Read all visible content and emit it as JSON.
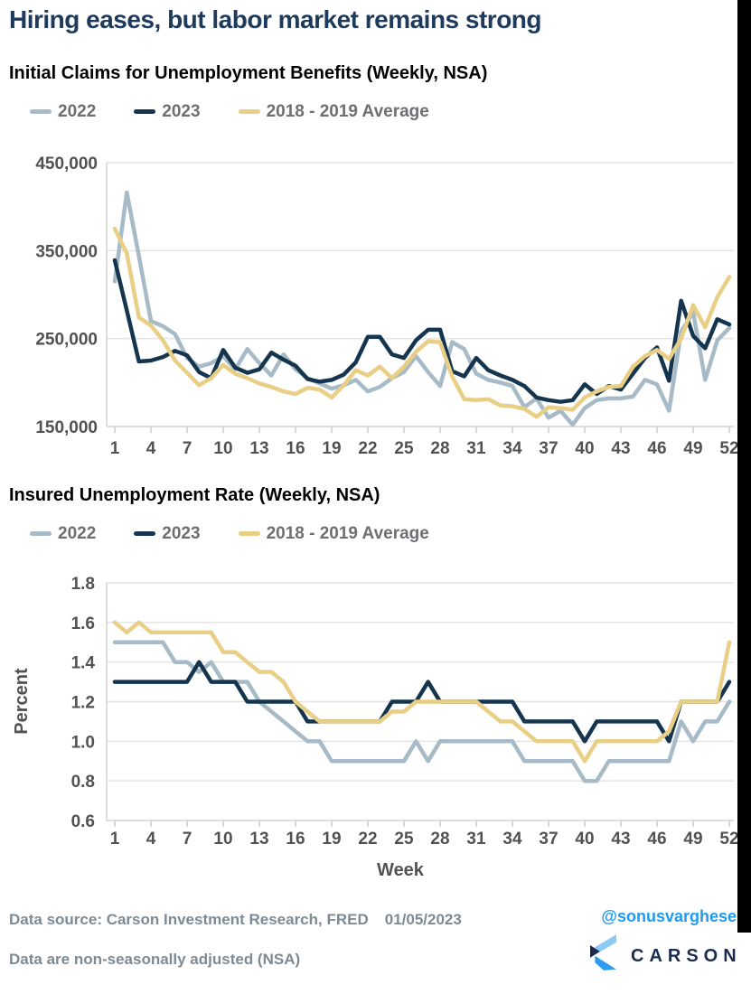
{
  "page": {
    "title": "Hiring eases, but labor market remains strong"
  },
  "colors": {
    "title": "#1E3A5C",
    "subtitle": "#000000",
    "legend_text": "#6E6F72",
    "axis_text": "#515254",
    "grid": "#E4E4E4",
    "axis_line": "#D2D2D2",
    "tick": "#C6CCD2",
    "footer_text": "#7D8A94",
    "handle_blue": "#1E9BF0",
    "brand_navy": "#1B2D4E",
    "strip_black": "#000000"
  },
  "charts": [
    {
      "subtitle": "Initial Claims for Unemployment Benefits (Weekly, NSA)",
      "chart_data": {
        "type": "line",
        "title": "Initial Claims for Unemployment Benefits (Weekly, NSA)",
        "xlabel": "",
        "ylabel": "",
        "x_unit": "week",
        "x_ticks": [
          1,
          4,
          7,
          10,
          13,
          16,
          19,
          22,
          25,
          28,
          31,
          34,
          37,
          40,
          43,
          46,
          49,
          52
        ],
        "ylim": [
          150000,
          450000
        ],
        "ytick_values": [
          450000,
          350000,
          250000,
          150000
        ],
        "ytick_labels": [
          "450,000",
          "350,000",
          "250,000",
          "150,000"
        ],
        "grid": "horizontal",
        "legend_position": "top",
        "series": [
          {
            "name": "2022",
            "color": "#A6BAC7",
            "values": [
              315000,
              416000,
              344000,
              270000,
              264000,
              255000,
              228000,
              218000,
              222000,
              230000,
              215000,
              238000,
              222000,
              208000,
              232000,
              215000,
              205000,
              199000,
              193000,
              197000,
              203000,
              190000,
              195000,
              205000,
              212000,
              230000,
              212000,
              196000,
              246000,
              238000,
              210000,
              203000,
              200000,
              196000,
              172000,
              182000,
              160000,
              168000,
              152000,
              171000,
              180000,
              182000,
              182000,
              184000,
              203000,
              198000,
              168000,
              258000,
              280000,
              203000,
              248000,
              262000
            ]
          },
          {
            "name": "2023",
            "color": "#15354F",
            "values": [
              339000,
              282000,
              224000,
              225000,
              229000,
              236000,
              231000,
              212000,
              205000,
              237000,
              217000,
              211000,
              215000,
              234000,
              226000,
              219000,
              204000,
              201000,
              203000,
              209000,
              223000,
              252000,
              252000,
              232000,
              228000,
              248000,
              260000,
              260000,
              213000,
              207000,
              228000,
              214000,
              208000,
              203000,
              196000,
              183000,
              180000,
              178000,
              180000,
              198000,
              187000,
              196000,
              192000,
              210000,
              228000,
              240000,
              202000,
              293000,
              253000,
              239000,
              272000,
              266000
            ]
          },
          {
            "name": "2018 - 2019 Average",
            "color": "#E9CF86",
            "values": [
              375000,
              347000,
              274000,
              265000,
              248000,
              225000,
              211000,
              197000,
              205000,
              220000,
              210000,
              205000,
              199000,
              195000,
              190000,
              187000,
              194000,
              192000,
              183000,
              197000,
              214000,
              208000,
              218000,
              205000,
              218000,
              235000,
              247000,
              246000,
              207000,
              181000,
              180000,
              181000,
              174000,
              173000,
              170000,
              161000,
              172000,
              171000,
              169000,
              183000,
              190000,
              195000,
              196000,
              218000,
              230000,
              237000,
              227000,
              250000,
              288000,
              263000,
              297000,
              320000
            ]
          }
        ]
      }
    },
    {
      "subtitle": "Insured Unemployment Rate (Weekly, NSA)",
      "chart_data": {
        "type": "line",
        "title": "Insured Unemployment Rate (Weekly, NSA)",
        "xlabel": "Week",
        "ylabel": "Percent",
        "x_unit": "week",
        "x_ticks": [
          1,
          4,
          7,
          10,
          13,
          16,
          19,
          22,
          25,
          28,
          31,
          34,
          37,
          40,
          43,
          46,
          49,
          52
        ],
        "ylim": [
          0.6,
          1.8
        ],
        "ytick_values": [
          1.8,
          1.6,
          1.4,
          1.2,
          1.0,
          0.8,
          0.6
        ],
        "ytick_labels": [
          "1.8",
          "1.6",
          "1.4",
          "1.2",
          "1.0",
          "0.8",
          "0.6"
        ],
        "grid": "horizontal",
        "legend_position": "top",
        "series": [
          {
            "name": "2022",
            "color": "#A6BAC7",
            "values": [
              1.5,
              1.5,
              1.5,
              1.5,
              1.5,
              1.4,
              1.4,
              1.35,
              1.4,
              1.3,
              1.3,
              1.3,
              1.2,
              1.15,
              1.1,
              1.05,
              1.0,
              1.0,
              0.9,
              0.9,
              0.9,
              0.9,
              0.9,
              0.9,
              0.9,
              1.0,
              0.9,
              1.0,
              1.0,
              1.0,
              1.0,
              1.0,
              1.0,
              1.0,
              0.9,
              0.9,
              0.9,
              0.9,
              0.9,
              0.8,
              0.8,
              0.9,
              0.9,
              0.9,
              0.9,
              0.9,
              0.9,
              1.1,
              1.0,
              1.1,
              1.1,
              1.2
            ]
          },
          {
            "name": "2023",
            "color": "#15354F",
            "values": [
              1.3,
              1.3,
              1.3,
              1.3,
              1.3,
              1.3,
              1.3,
              1.4,
              1.3,
              1.3,
              1.3,
              1.2,
              1.2,
              1.2,
              1.2,
              1.2,
              1.1,
              1.1,
              1.1,
              1.1,
              1.1,
              1.1,
              1.1,
              1.2,
              1.2,
              1.2,
              1.3,
              1.2,
              1.2,
              1.2,
              1.2,
              1.2,
              1.2,
              1.2,
              1.1,
              1.1,
              1.1,
              1.1,
              1.1,
              1.0,
              1.1,
              1.1,
              1.1,
              1.1,
              1.1,
              1.1,
              1.0,
              1.2,
              1.2,
              1.2,
              1.2,
              1.3
            ]
          },
          {
            "name": "2018 - 2019 Average",
            "color": "#E9CF86",
            "values": [
              1.6,
              1.55,
              1.6,
              1.55,
              1.55,
              1.55,
              1.55,
              1.55,
              1.55,
              1.45,
              1.45,
              1.4,
              1.35,
              1.35,
              1.3,
              1.2,
              1.15,
              1.1,
              1.1,
              1.1,
              1.1,
              1.1,
              1.1,
              1.15,
              1.15,
              1.2,
              1.2,
              1.2,
              1.2,
              1.2,
              1.2,
              1.15,
              1.1,
              1.1,
              1.05,
              1.0,
              1.0,
              1.0,
              1.0,
              0.9,
              1.0,
              1.0,
              1.0,
              1.0,
              1.0,
              1.0,
              1.05,
              1.2,
              1.2,
              1.2,
              1.2,
              1.5
            ]
          }
        ]
      }
    }
  ],
  "footer": {
    "source": "Data source: Carson Investment Research, FRED",
    "date": "01/05/2023",
    "note": "Data are non-seasonally adjusted (NSA)",
    "handle": "@sonusvarghese",
    "brand": "CARSON",
    "logo_colors": [
      "#8CCBF4",
      "#1B2B4B",
      "#2D9CEF"
    ]
  }
}
